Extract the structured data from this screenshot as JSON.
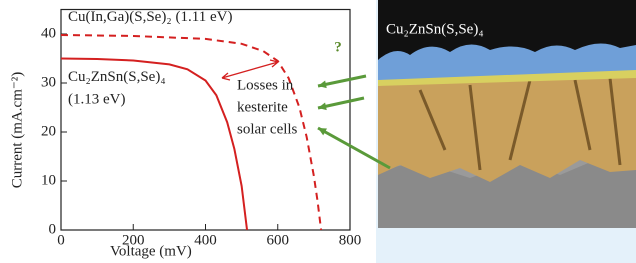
{
  "chart_data": {
    "type": "line",
    "x_label": "Voltage (mV)",
    "y_label": "Current (mA.cm⁻²)",
    "xlim": [
      0,
      800
    ],
    "xticks": [
      0,
      200,
      400,
      600,
      800
    ],
    "ylim": [
      0,
      45
    ],
    "yticks": [
      0,
      10,
      20,
      30,
      40
    ],
    "series": [
      {
        "name": "Cu(In,Ga)(S,Se)₂",
        "bandgap": "(1.11 eV)",
        "color": "#d42020",
        "dashed": true,
        "x": [
          0,
          200,
          400,
          500,
          560,
          600,
          630,
          660,
          680,
          700,
          710,
          720
        ],
        "values": [
          39.8,
          39.6,
          39,
          38,
          36.5,
          34.5,
          31,
          25,
          19,
          11,
          6,
          0
        ]
      },
      {
        "name": "Cu₂ZnSn(S,Se)₄",
        "bandgap": "(1.13 eV)",
        "color": "#d42020",
        "dashed": false,
        "x": [
          0,
          100,
          200,
          300,
          350,
          400,
          430,
          460,
          480,
          500,
          515
        ],
        "values": [
          35,
          34.9,
          34.6,
          33.8,
          32.8,
          30.5,
          27.5,
          22,
          16.5,
          9,
          0
        ]
      }
    ],
    "annotation": [
      "Losses in",
      "kesterite",
      "solar cells"
    ],
    "question_mark": "?",
    "image_label": "Cu₂ZnSn(S,Se)₄"
  }
}
